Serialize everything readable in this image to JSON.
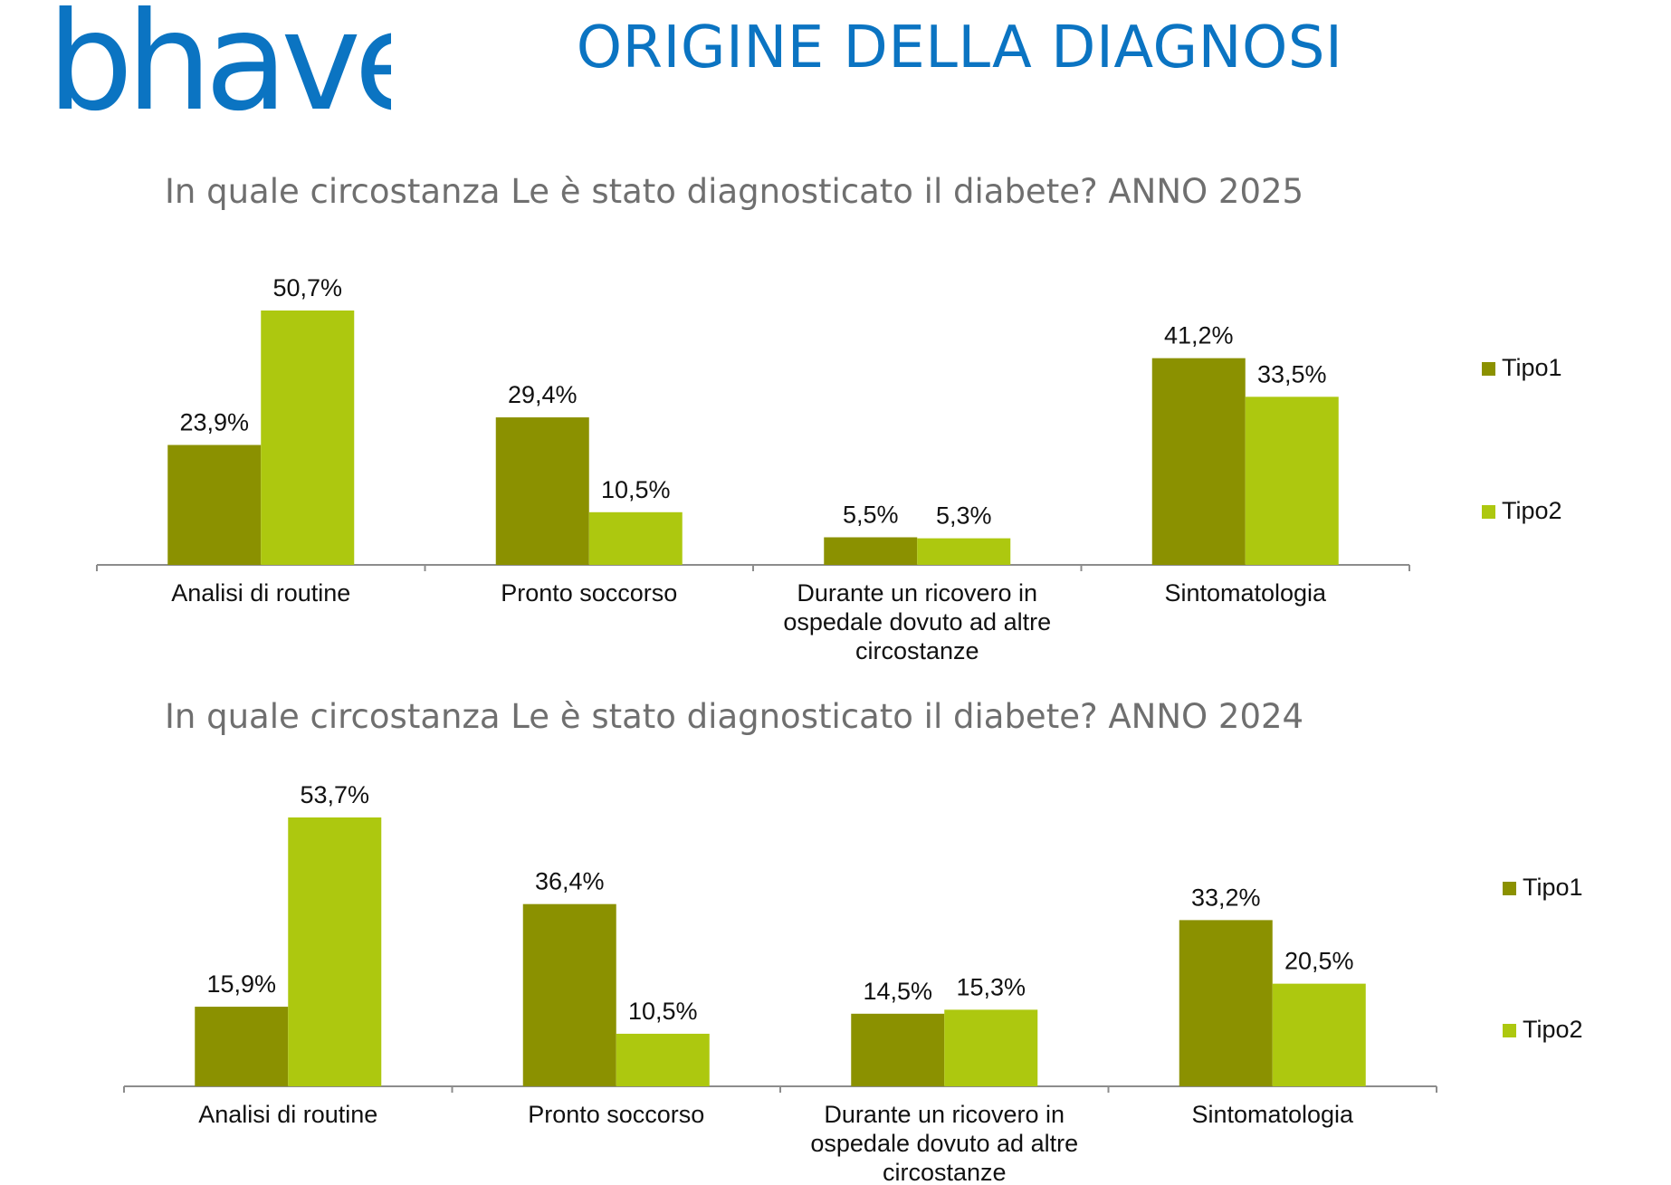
{
  "header": {
    "brand": "bhave",
    "title": "ORIGINE DELLA DIAGNOSI"
  },
  "colors": {
    "brand": "#0b74c2",
    "tipo1": "#8b9100",
    "tipo2": "#adc80f"
  },
  "chart_data": [
    {
      "type": "bar",
      "title": "In quale circostanza Le è stato diagnosticato il diabete? ANNO 2025",
      "categories": [
        "Analisi di routine",
        "Pronto soccorso",
        "Durante un ricovero in ospedale dovuto ad altre circostanze",
        "Sintomatologia"
      ],
      "category_lines": [
        [
          "Analisi di routine"
        ],
        [
          "Pronto soccorso"
        ],
        [
          "Durante un ricovero in",
          "ospedale dovuto ad altre",
          "circostanze"
        ],
        [
          "Sintomatologia"
        ]
      ],
      "series": [
        {
          "name": "Tipo1",
          "values": [
            23.9,
            29.4,
            5.5,
            41.2
          ],
          "labels": [
            "23,9%",
            "29,4%",
            "5,5%",
            "41,2%"
          ]
        },
        {
          "name": "Tipo2",
          "values": [
            50.7,
            10.5,
            5.3,
            33.5
          ],
          "labels": [
            "50,7%",
            "10,5%",
            "5,3%",
            "33,5%"
          ]
        }
      ],
      "ylim": [
        0,
        50.7
      ],
      "legend": "right",
      "xlabel": "",
      "ylabel": ""
    },
    {
      "type": "bar",
      "title": "In quale circostanza Le è stato diagnosticato il diabete? ANNO 2024",
      "categories": [
        "Analisi di routine",
        "Pronto soccorso",
        "Durante un ricovero in ospedale dovuto ad altre circostanze",
        "Sintomatologia"
      ],
      "category_lines": [
        [
          "Analisi di routine"
        ],
        [
          "Pronto soccorso"
        ],
        [
          "Durante un ricovero in",
          "ospedale dovuto ad altre",
          "circostanze"
        ],
        [
          "Sintomatologia"
        ]
      ],
      "series": [
        {
          "name": "Tipo1",
          "values": [
            15.9,
            36.4,
            14.5,
            33.2
          ],
          "labels": [
            "15,9%",
            "36,4%",
            "14,5%",
            "33,2%"
          ]
        },
        {
          "name": "Tipo2",
          "values": [
            53.7,
            10.5,
            15.3,
            20.5
          ],
          "labels": [
            "53,7%",
            "10,5%",
            "15,3%",
            "20,5%"
          ]
        }
      ],
      "ylim": [
        0,
        53.7
      ],
      "legend": "right",
      "xlabel": "",
      "ylabel": ""
    }
  ]
}
